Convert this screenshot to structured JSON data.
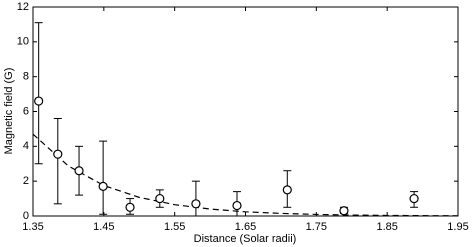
{
  "chart_data": {
    "type": "scatter",
    "xlabel": "Distance (Solar radii)",
    "ylabel": "Magnetic field (G)",
    "xlim": [
      1.35,
      1.95
    ],
    "xticks": [
      1.35,
      1.45,
      1.55,
      1.65,
      1.75,
      1.85,
      1.95
    ],
    "ylim": [
      0,
      12
    ],
    "yticks": [
      0,
      2,
      4,
      6,
      8,
      10,
      12
    ],
    "color": "#000000",
    "x": [
      1.358,
      1.385,
      1.415,
      1.449,
      1.487,
      1.529,
      1.58,
      1.638,
      1.709,
      1.789,
      1.888
    ],
    "values": [
      6.6,
      3.55,
      2.6,
      1.7,
      0.5,
      1.0,
      0.7,
      0.6,
      1.5,
      0.3,
      1.0
    ],
    "error_high": [
      11.1,
      5.6,
      4.0,
      4.3,
      1.0,
      1.5,
      2.0,
      1.4,
      2.6,
      0.5,
      1.4
    ],
    "error_low": [
      3.0,
      0.7,
      1.2,
      0.1,
      0.1,
      0.5,
      0.0,
      0.0,
      0.5,
      0.15,
      0.5
    ],
    "fit": {
      "x": [
        1.35,
        1.4,
        1.45,
        1.5,
        1.55,
        1.6,
        1.65,
        1.7,
        1.75,
        1.8,
        1.85,
        1.9,
        1.95
      ],
      "values": [
        4.7,
        2.87,
        1.75,
        1.07,
        0.65,
        0.4,
        0.24,
        0.15,
        0.09,
        0.055,
        0.033,
        0.02,
        0.012
      ]
    }
  }
}
